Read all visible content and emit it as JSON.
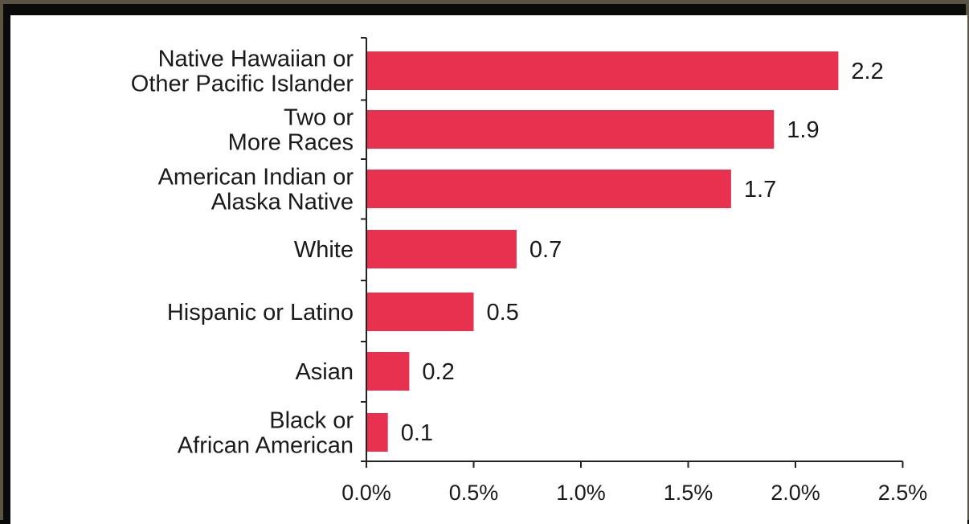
{
  "chart_data": {
    "type": "bar",
    "orientation": "horizontal",
    "categories": [
      [
        "Native Hawaiian or",
        "Other Pacific Islander"
      ],
      [
        "Two or",
        "More Races"
      ],
      [
        "American Indian or",
        "Alaska Native"
      ],
      [
        "White"
      ],
      [
        "Hispanic or Latino"
      ],
      [
        "Asian"
      ],
      [
        "Black or",
        "African American"
      ]
    ],
    "values": [
      2.2,
      1.9,
      1.7,
      0.7,
      0.5,
      0.2,
      0.1
    ],
    "value_labels": [
      "2.2",
      "1.9",
      "1.7",
      "0.7",
      "0.5",
      "0.2",
      "0.1"
    ],
    "x_ticks": [
      0.0,
      0.5,
      1.0,
      1.5,
      2.0,
      2.5
    ],
    "x_tick_labels": [
      "0.0%",
      "0.5%",
      "1.0%",
      "1.5%",
      "2.0%",
      "2.5%"
    ],
    "xlim": [
      0,
      2.5
    ],
    "bar_color": "#e8304f",
    "grid": false,
    "legend": "none",
    "title": "",
    "xlabel": "",
    "ylabel": ""
  }
}
